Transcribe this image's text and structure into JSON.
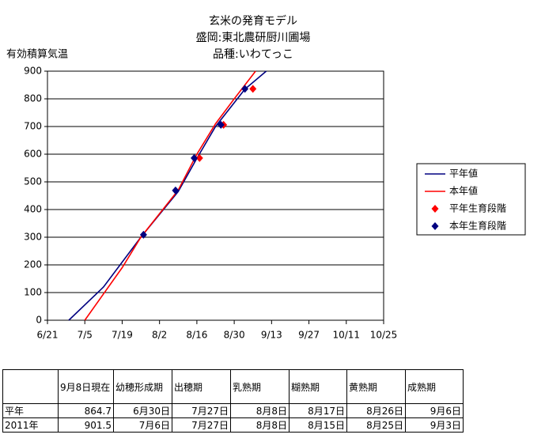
{
  "chart_data": {
    "type": "line",
    "title": "玄米の発育モデル",
    "subtitle": [
      "盛岡:東北農研厨川圃場",
      "品種:いわてっこ"
    ],
    "y_label": "有効積算気温",
    "xlim": [
      "6/21",
      "10/25"
    ],
    "xticks": [
      "6/21",
      "7/5",
      "7/19",
      "8/2",
      "8/16",
      "8/30",
      "9/13",
      "9/27",
      "10/11",
      "10/25"
    ],
    "ylim": [
      0,
      900
    ],
    "yticks": [
      0,
      100,
      200,
      300,
      400,
      500,
      600,
      700,
      800,
      900
    ],
    "grid": true,
    "legend": "right",
    "series": [
      {
        "name": "平年値",
        "color": "#000080",
        "kind": "line",
        "x": [
          "6/29",
          "7/12",
          "7/26",
          "8/9",
          "8/16",
          "8/23",
          "9/3",
          "9/11"
        ],
        "values": [
          0,
          120,
          300,
          465,
          585,
          700,
          835,
          900
        ]
      },
      {
        "name": "本年値",
        "color": "#ff0000",
        "kind": "line",
        "x": [
          "7/5",
          "7/19",
          "7/26",
          "8/9",
          "8/16",
          "8/23",
          "8/30",
          "9/7"
        ],
        "values": [
          0,
          190,
          300,
          470,
          600,
          710,
          800,
          900
        ]
      },
      {
        "name": "平年生育段階",
        "color": "#ff0000",
        "kind": "marker",
        "x": [
          "8/17",
          "8/26",
          "9/6"
        ],
        "values": [
          586,
          706,
          836
        ]
      },
      {
        "name": "本年生育段階",
        "color": "#000080",
        "kind": "marker",
        "x": [
          "7/27",
          "8/8",
          "8/15",
          "8/25",
          "9/3"
        ],
        "values": [
          309,
          469,
          586,
          706,
          836
        ]
      }
    ]
  },
  "table": {
    "header": [
      "9月8日現在",
      "幼穂形成期",
      "出穂期",
      "乳熟期",
      "糊熟期",
      "黄熟期",
      "成熟期"
    ],
    "rows": [
      [
        "平年",
        "864.7",
        "6月30日",
        "7月27日",
        "8月8日",
        "8月17日",
        "8月26日",
        "9月6日"
      ],
      [
        "2011年",
        "901.5",
        "7月6日",
        "7月27日",
        "8月8日",
        "8月15日",
        "8月25日",
        "9月3日"
      ]
    ]
  }
}
